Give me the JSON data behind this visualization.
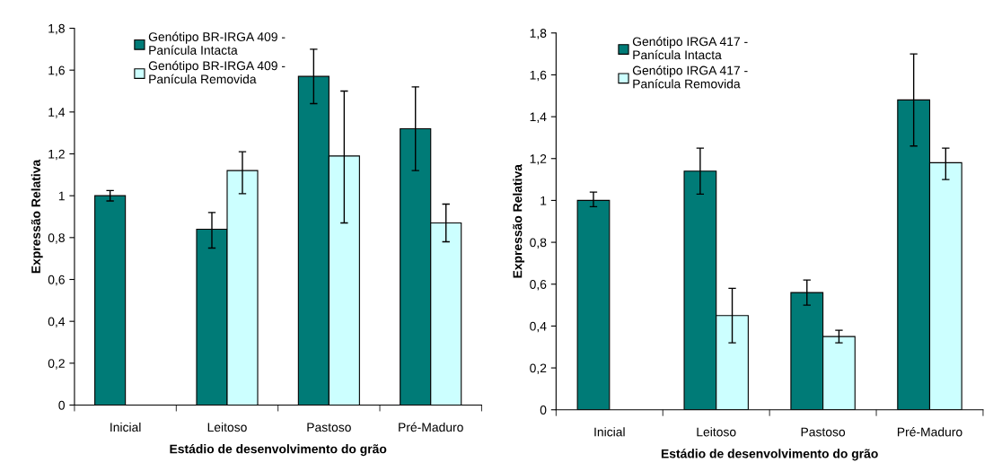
{
  "chart_data": [
    {
      "type": "bar",
      "xlabel": "Estádio de desenvolvimento do grão",
      "ylabel": "Expressão Relativa",
      "categories": [
        "Inicial",
        "Leitoso",
        "Pastoso",
        "Pré-Maduro"
      ],
      "series": [
        {
          "name": "Genótipo BR-IRGA 409 - Panícula Intacta",
          "color": "#007b77",
          "values": [
            1.0,
            0.84,
            1.57,
            1.32
          ],
          "errors": [
            [
              0.975,
              1.025
            ],
            [
              0.75,
              0.92
            ],
            [
              1.44,
              1.7
            ],
            [
              1.12,
              1.52
            ]
          ]
        },
        {
          "name": "Genótipo BR-IRGA 409 - Panícula Removida",
          "color": "#ccffff",
          "values": [
            null,
            1.12,
            1.19,
            0.87
          ],
          "errors": [
            null,
            [
              1.01,
              1.21
            ],
            [
              0.87,
              1.5
            ],
            [
              0.78,
              0.96
            ]
          ]
        }
      ],
      "ylim": [
        0,
        1.8
      ],
      "yticks": [
        {
          "value": 0,
          "label": "0"
        },
        {
          "value": 0.2,
          "label": "0,2"
        },
        {
          "value": 0.4,
          "label": "0,4"
        },
        {
          "value": 0.6,
          "label": "0,6"
        },
        {
          "value": 0.8,
          "label": "0,8"
        },
        {
          "value": 1,
          "label": "1"
        },
        {
          "value": 1.2,
          "label": "1,2"
        },
        {
          "value": 1.4,
          "label": "1,4"
        },
        {
          "value": 1.6,
          "label": "1,6"
        },
        {
          "value": 1.8,
          "label": "1,8"
        }
      ],
      "legend": "top left",
      "grid": false
    },
    {
      "type": "bar",
      "xlabel": "Estádio de desenvolvimento do grão",
      "ylabel": "Expressão Relativa",
      "categories": [
        "Inicial",
        "Leitoso",
        "Pastoso",
        "Pré-Maduro"
      ],
      "series": [
        {
          "name": "Genótipo IRGA 417 - Panícula Intacta",
          "color": "#007b77",
          "values": [
            1.0,
            1.14,
            0.56,
            1.48
          ],
          "errors": [
            [
              0.97,
              1.04
            ],
            [
              1.03,
              1.25
            ],
            [
              0.5,
              0.62
            ],
            [
              1.26,
              1.7
            ]
          ]
        },
        {
          "name": "Genótipo IRGA 417 - Panícula Removida",
          "color": "#ccffff",
          "values": [
            null,
            0.45,
            0.35,
            1.18
          ],
          "errors": [
            null,
            [
              0.32,
              0.58
            ],
            [
              0.32,
              0.38
            ],
            [
              1.1,
              1.25
            ]
          ]
        }
      ],
      "ylim": [
        0,
        1.8
      ],
      "yticks": [
        {
          "value": 0,
          "label": "0"
        },
        {
          "value": 0.2,
          "label": "0,2"
        },
        {
          "value": 0.4,
          "label": "0,4"
        },
        {
          "value": 0.6,
          "label": "0,6"
        },
        {
          "value": 0.8,
          "label": "0,8"
        },
        {
          "value": 1,
          "label": "1"
        },
        {
          "value": 1.2,
          "label": "1,2"
        },
        {
          "value": 1.4,
          "label": "1,4"
        },
        {
          "value": 1.6,
          "label": "1,6"
        },
        {
          "value": 1.8,
          "label": "1,8"
        }
      ],
      "legend": "top left",
      "grid": false
    }
  ]
}
